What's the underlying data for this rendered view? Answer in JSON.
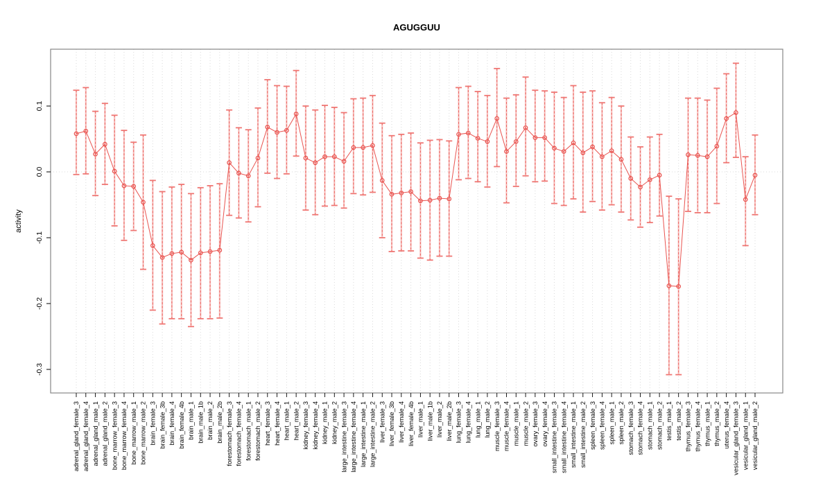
{
  "chart_data": {
    "type": "scatter",
    "title": "AGUGGUU",
    "xlabel": "",
    "ylabel": "activity",
    "ylim": [
      -0.336,
      0.186
    ],
    "yticks": [
      "0.1",
      "0.0",
      "-0.1",
      "-0.2",
      "-0.3"
    ],
    "grid": "dotted vertical gridline per category; dotted horizontal line at 0",
    "legend": "none",
    "marker": "open-circle",
    "errorbars": "vertical with caps, dashed shaft overlay",
    "categories": [
      "adrenal_gland_female_3",
      "adrenal_gland_female_4",
      "adrenal_gland_male_1",
      "adrenal_gland_male_2",
      "bone_marrow_female_3",
      "bone_marrow_female_4",
      "bone_marrow_male_1",
      "bone_marrow_male_2",
      "brain_female_3",
      "brain_female_3b",
      "brain_female_4",
      "brain_female_4b",
      "brain_male_1",
      "brain_male_1b",
      "brain_male_2",
      "brain_male_2b",
      "forestomach_female_3",
      "forestomach_female_4",
      "forestomach_male_1",
      "forestomach_male_2",
      "heart_female_3",
      "heart_female_4",
      "heart_male_1",
      "heart_male_2",
      "kidney_female_3",
      "kidney_female_4",
      "kidney_male_1",
      "kidney_male_2",
      "large_intestine_female_3",
      "large_intestine_female_4",
      "large_intestine_male_1",
      "large_intestine_male_2",
      "liver_female_3",
      "liver_female_3b",
      "liver_female_4",
      "liver_female_4b",
      "liver_male_1",
      "liver_male_1b",
      "liver_male_2",
      "liver_male_2b",
      "lung_female_3",
      "lung_female_4",
      "lung_male_1",
      "lung_male_2",
      "muscle_female_3",
      "muscle_female_4",
      "muscle_male_1",
      "muscle_male_2",
      "ovary_female_3",
      "ovary_female_4",
      "small_intestine_female_3",
      "small_intestine_female_4",
      "small_intestine_male_1",
      "small_intestine_male_2",
      "spleen_female_3",
      "spleen_female_4",
      "spleen_male_1",
      "spleen_male_2",
      "stomach_female_3",
      "stomach_female_4",
      "stomach_male_1",
      "stomach_male_2",
      "testis_male_1",
      "testis_male_2",
      "thymus_female_3",
      "thymus_female_4",
      "thymus_male_1",
      "thymus_male_2",
      "uterus_female_4",
      "vesicular_gland_female_3",
      "vesicular_gland_male_1",
      "vesicular_gland_male_2"
    ],
    "series": [
      {
        "name": "activity",
        "values": [
          0.058,
          0.062,
          0.027,
          0.042,
          0.001,
          -0.021,
          -0.022,
          -0.046,
          -0.112,
          -0.13,
          -0.124,
          -0.122,
          -0.134,
          -0.123,
          -0.121,
          -0.119,
          0.014,
          -0.002,
          -0.006,
          0.021,
          0.068,
          0.06,
          0.063,
          0.088,
          0.021,
          0.014,
          0.023,
          0.023,
          0.016,
          0.037,
          0.037,
          0.04,
          -0.013,
          -0.034,
          -0.032,
          -0.03,
          -0.044,
          -0.043,
          -0.04,
          -0.041,
          0.057,
          0.059,
          0.051,
          0.046,
          0.081,
          0.031,
          0.046,
          0.067,
          0.052,
          0.052,
          0.036,
          0.031,
          0.044,
          0.029,
          0.038,
          0.023,
          0.032,
          0.019,
          -0.01,
          -0.023,
          -0.012,
          -0.005,
          -0.173,
          -0.174,
          0.026,
          0.025,
          0.023,
          0.039,
          0.081,
          0.09,
          -0.042,
          -0.005
        ],
        "lower": [
          -0.004,
          -0.003,
          -0.036,
          -0.019,
          -0.082,
          -0.104,
          -0.089,
          -0.148,
          -0.21,
          -0.231,
          -0.223,
          -0.223,
          -0.235,
          -0.223,
          -0.223,
          -0.222,
          -0.066,
          -0.07,
          -0.076,
          -0.053,
          -0.002,
          -0.01,
          -0.003,
          0.024,
          -0.058,
          -0.065,
          -0.052,
          -0.051,
          -0.055,
          -0.033,
          -0.035,
          -0.031,
          -0.1,
          -0.121,
          -0.12,
          -0.12,
          -0.131,
          -0.134,
          -0.128,
          -0.128,
          -0.012,
          -0.01,
          -0.015,
          -0.023,
          0.008,
          -0.047,
          -0.022,
          -0.006,
          -0.015,
          -0.014,
          -0.048,
          -0.051,
          -0.041,
          -0.061,
          -0.045,
          -0.058,
          -0.05,
          -0.061,
          -0.073,
          -0.084,
          -0.077,
          -0.067,
          -0.308,
          -0.308,
          -0.06,
          -0.062,
          -0.062,
          -0.048,
          0.014,
          0.022,
          -0.112,
          -0.065
        ],
        "upper": [
          0.124,
          0.128,
          0.092,
          0.104,
          0.086,
          0.063,
          0.045,
          0.056,
          -0.013,
          -0.03,
          -0.023,
          -0.019,
          -0.033,
          -0.024,
          -0.021,
          -0.018,
          0.094,
          0.067,
          0.064,
          0.097,
          0.14,
          0.131,
          0.13,
          0.154,
          0.1,
          0.094,
          0.101,
          0.098,
          0.09,
          0.111,
          0.112,
          0.116,
          0.074,
          0.055,
          0.057,
          0.059,
          0.044,
          0.048,
          0.049,
          0.047,
          0.128,
          0.13,
          0.122,
          0.116,
          0.157,
          0.112,
          0.117,
          0.144,
          0.124,
          0.123,
          0.121,
          0.113,
          0.131,
          0.121,
          0.123,
          0.105,
          0.113,
          0.1,
          0.053,
          0.038,
          0.053,
          0.057,
          -0.037,
          -0.041,
          0.112,
          0.112,
          0.109,
          0.127,
          0.149,
          0.165,
          0.023,
          0.056
        ]
      }
    ],
    "colors": {
      "line": "#e9534f",
      "marker_stroke": "#e9534f",
      "bar_shaft": "#f4918e",
      "bar_cap": "#ef7673",
      "grid": "#d9d9d9",
      "frame": "#878787",
      "text": "#000000"
    }
  }
}
